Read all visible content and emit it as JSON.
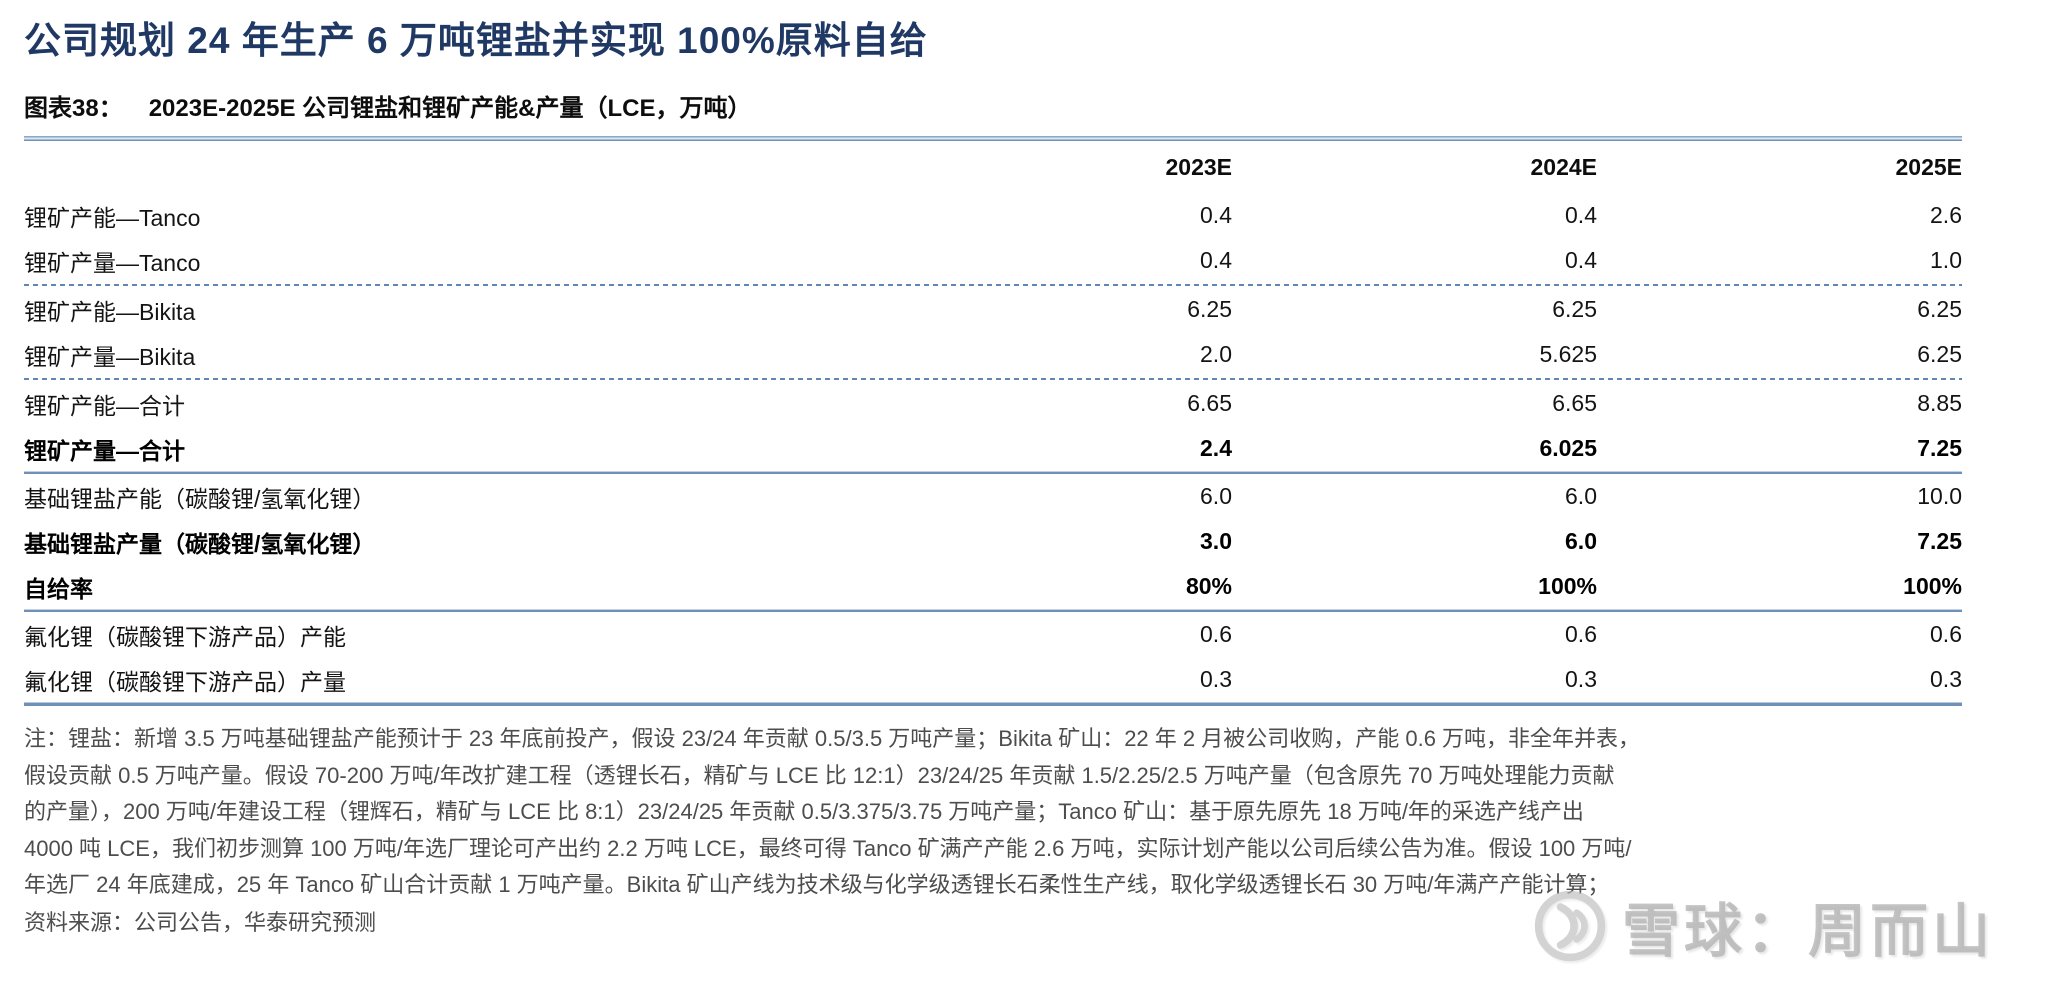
{
  "page": {
    "title": "公司规划 24 年生产 6 万吨锂盐并实现 100%原料自给"
  },
  "figure": {
    "label": "图表38：",
    "title": "2023E-2025E 公司锂盐和锂矿产能&产量（LCE，万吨）"
  },
  "table": {
    "columns": [
      "2023E",
      "2024E",
      "2025E"
    ],
    "rows": [
      {
        "label": "锂矿产能—Tanco",
        "values": [
          "0.4",
          "0.4",
          "2.6"
        ],
        "bold": false,
        "sep_after": "none"
      },
      {
        "label": "锂矿产量—Tanco",
        "values": [
          "0.4",
          "0.4",
          "1.0"
        ],
        "bold": false,
        "sep_after": "dotted"
      },
      {
        "label": "锂矿产能—Bikita",
        "values": [
          "6.25",
          "6.25",
          "6.25"
        ],
        "bold": false,
        "sep_after": "none"
      },
      {
        "label": "锂矿产量—Bikita",
        "values": [
          "2.0",
          "5.625",
          "6.25"
        ],
        "bold": false,
        "sep_after": "dotted"
      },
      {
        "label": "锂矿产能—合计",
        "values": [
          "6.65",
          "6.65",
          "8.85"
        ],
        "bold": false,
        "sep_after": "none"
      },
      {
        "label": "锂矿产量—合计",
        "values": [
          "2.4",
          "6.025",
          "7.25"
        ],
        "bold": true,
        "sep_after": "solid"
      },
      {
        "label": "基础锂盐产能（碳酸锂/氢氧化锂）",
        "values": [
          "6.0",
          "6.0",
          "10.0"
        ],
        "bold": false,
        "sep_after": "none"
      },
      {
        "label": "基础锂盐产量（碳酸锂/氢氧化锂）",
        "values": [
          "3.0",
          "6.0",
          "7.25"
        ],
        "bold": true,
        "sep_after": "none"
      },
      {
        "label": "自给率",
        "values": [
          "80%",
          "100%",
          "100%"
        ],
        "bold": true,
        "sep_after": "solid"
      },
      {
        "label": "氟化锂（碳酸锂下游产品）产能",
        "values": [
          "0.6",
          "0.6",
          "0.6"
        ],
        "bold": false,
        "sep_after": "none"
      },
      {
        "label": "氟化锂（碳酸锂下游产品）产量",
        "values": [
          "0.3",
          "0.3",
          "0.3"
        ],
        "bold": false,
        "sep_after": "none"
      }
    ]
  },
  "notes": {
    "lines": [
      "注：锂盐：新增 3.5 万吨基础锂盐产能预计于 23 年底前投产，假设 23/24 年贡献 0.5/3.5 万吨产量；Bikita 矿山：22 年 2 月被公司收购，产能 0.6 万吨，非全年并表，",
      "假设贡献 0.5 万吨产量。假设 70-200 万吨/年改扩建工程（透锂长石，精矿与 LCE 比 12:1）23/24/25 年贡献 1.5/2.25/2.5 万吨产量（包含原先 70 万吨处理能力贡献",
      "的产量），200 万吨/年建设工程（锂辉石，精矿与 LCE 比 8:1）23/24/25 年贡献 0.5/3.375/3.75 万吨产量；Tanco 矿山：基于原先原先 18 万吨/年的采选产线产出",
      "4000 吨 LCE，我们初步测算 100 万吨/年选厂理论可产出约 2.2 万吨 LCE，最终可得 Tanco 矿满产产能 2.6 万吨，实际计划产能以公司后续公告为准。假设 100 万吨/",
      "年选厂 24 年底建成，25 年 Tanco 矿山合计贡献 1 万吨产量。Bikita 矿山产线为技术级与化学级透锂长石柔性生产线，取化学级透锂长石 30 万吨/年满产产能计算；"
    ]
  },
  "source": "资料来源：公司公告，华泰研究预测",
  "watermark": {
    "text": "雪球：周而山"
  },
  "colors": {
    "title_navy": "#1F3864",
    "rule_blue": "#7091B8",
    "note_gray": "#4D4D4D"
  }
}
